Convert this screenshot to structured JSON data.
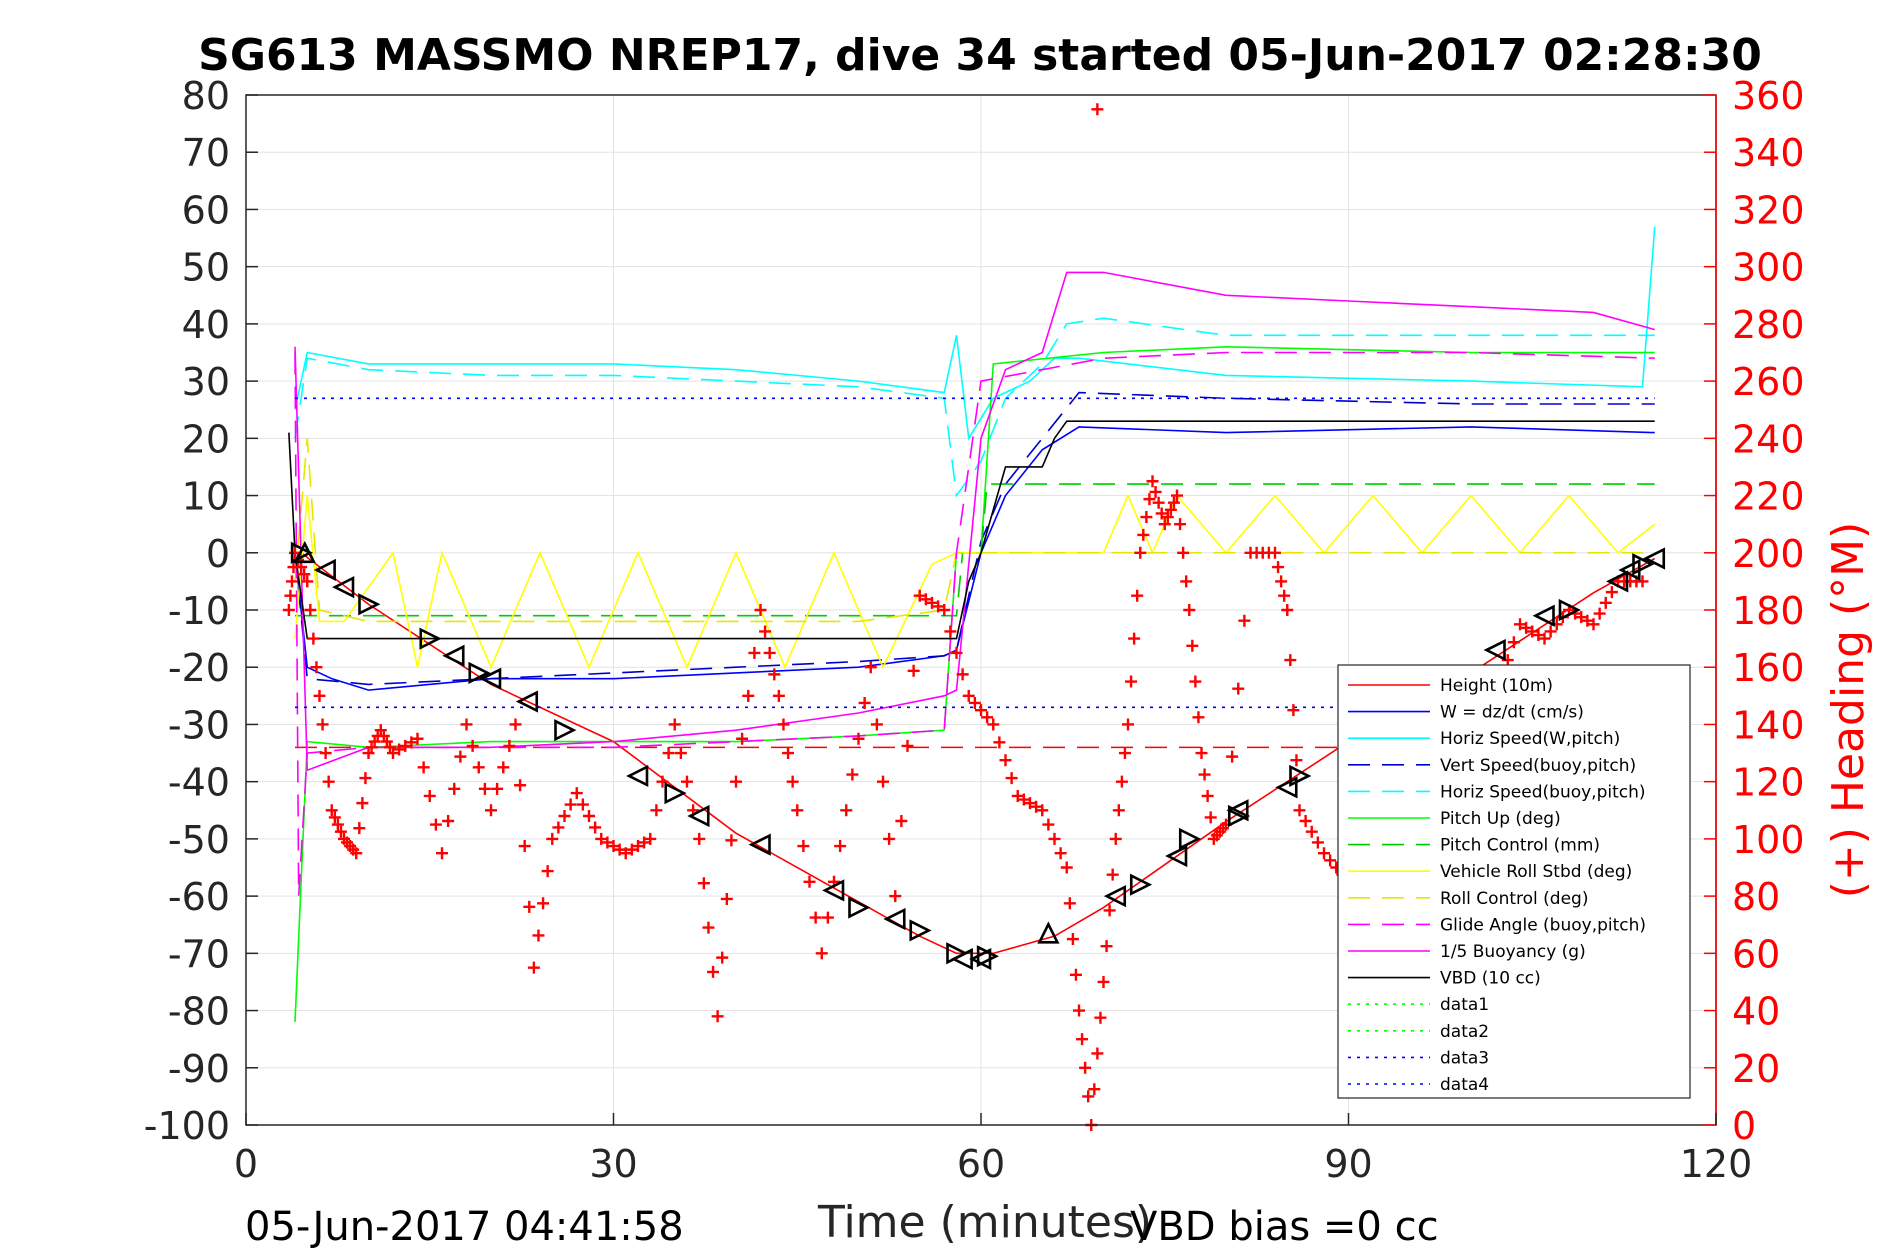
{
  "chart_data": {
    "type": "line",
    "title": "SG613 MASSMO NREP17, dive 34 started 05-Jun-2017 02:28:30",
    "xlabel": "Time (minutes)",
    "ylabel_right": "(+) Heading (°M)",
    "footer_left": "05-Jun-2017 04:41:58",
    "footer_right": "VBD bias =0 cc",
    "xlim": [
      0,
      120
    ],
    "ylim": [
      -100,
      80
    ],
    "ylim_right": [
      0,
      360
    ],
    "x_ticks": [
      "0",
      "30",
      "60",
      "90",
      "120"
    ],
    "y_ticks": [
      "80",
      "70",
      "60",
      "50",
      "40",
      "30",
      "20",
      "10",
      "0",
      "-10",
      "-20",
      "-30",
      "-40",
      "-50",
      "-60",
      "-70",
      "-80",
      "-90",
      "-100"
    ],
    "y_ticks_right": [
      "360",
      "340",
      "320",
      "300",
      "280",
      "260",
      "240",
      "220",
      "200",
      "180",
      "160",
      "140",
      "120",
      "100",
      "80",
      "60",
      "40",
      "20",
      "0"
    ],
    "grid": true,
    "legend_position": "bottom-right",
    "series": [
      {
        "name": "Height (10m)",
        "color": "#ff0000",
        "style": "solid",
        "x": [
          4.5,
          10,
          20,
          30,
          40,
          50,
          55,
          58,
          61,
          66,
          70,
          80,
          90,
          100,
          110,
          115
        ],
        "y": [
          0,
          -9,
          -23,
          -33,
          -49,
          -61,
          -67,
          -70,
          -70,
          -67,
          -62,
          -47,
          -33,
          -21,
          -7,
          -1
        ]
      },
      {
        "name": "W = dz/dt (cm/s)",
        "color": "#0000ff",
        "style": "solid",
        "x": [
          4,
          5,
          7,
          10,
          20,
          30,
          40,
          50,
          57,
          58,
          60,
          62,
          65,
          68,
          80,
          100,
          115
        ],
        "y": [
          0,
          -20,
          -22,
          -24,
          -22,
          -22,
          -21,
          -20,
          -18,
          -17,
          0,
          10,
          18,
          22,
          21,
          22,
          21
        ]
      },
      {
        "name": "Horiz Speed(W,pitch)",
        "color": "#00ffff",
        "style": "solid",
        "x": [
          4,
          5,
          10,
          20,
          30,
          40,
          50,
          57,
          58,
          59,
          61,
          64,
          66,
          68,
          80,
          100,
          114,
          115
        ],
        "y": [
          25,
          35,
          33,
          33,
          33,
          32,
          30,
          28,
          38,
          20,
          27,
          30,
          34,
          34,
          31,
          30,
          29,
          57
        ]
      },
      {
        "name": "Vert Speed(buoy,pitch)",
        "color": "#0000cd",
        "style": "dashed",
        "x": [
          4,
          5,
          10,
          20,
          30,
          40,
          50,
          57,
          58,
          60,
          62,
          65,
          68,
          80,
          100,
          115
        ],
        "y": [
          0,
          -22,
          -23,
          -22,
          -21,
          -20,
          -19,
          -18,
          -17,
          2,
          12,
          20,
          28,
          27,
          26,
          26
        ]
      },
      {
        "name": "Horiz Speed(buoy,pitch)",
        "color": "#00ffff",
        "style": "dashed",
        "x": [
          4,
          5,
          10,
          20,
          30,
          40,
          50,
          57,
          58,
          60,
          62,
          65,
          67,
          70,
          80,
          100,
          115
        ],
        "y": [
          20,
          34,
          32,
          31,
          31,
          30,
          29,
          27,
          10,
          16,
          27,
          33,
          40,
          41,
          38,
          38,
          38
        ]
      },
      {
        "name": "Pitch Up (deg)",
        "color": "#00ff00",
        "style": "solid",
        "x": [
          4,
          5,
          10,
          20,
          30,
          40,
          50,
          57,
          58,
          60,
          61,
          70,
          80,
          100,
          115
        ],
        "y": [
          -82,
          -33,
          -34,
          -33,
          -33,
          -33,
          -32,
          -31,
          0,
          0,
          33,
          35,
          36,
          35,
          35
        ]
      },
      {
        "name": "Pitch Control (mm)",
        "color": "#00cc00",
        "style": "dashed",
        "x": [
          4,
          58,
          58.5,
          60,
          60.5,
          115
        ],
        "y": [
          -11,
          -11,
          0,
          0,
          12,
          12
        ]
      },
      {
        "name": "Vehicle Roll Stbd (deg)",
        "color": "#ffff00",
        "style": "solid",
        "x": [
          4,
          5,
          6,
          8,
          12,
          14,
          16,
          20,
          24,
          28,
          32,
          36,
          40,
          44,
          48,
          52,
          56,
          58,
          60,
          64,
          68,
          70,
          72,
          74,
          76,
          80,
          84,
          88,
          92,
          96,
          100,
          104,
          108,
          112,
          115
        ],
        "y": [
          -15,
          10,
          -12,
          -12,
          0,
          -20,
          0,
          -20,
          0,
          -20,
          0,
          -20,
          0,
          -20,
          0,
          -20,
          -2,
          0,
          0,
          0,
          0,
          0,
          10,
          0,
          10,
          0,
          10,
          0,
          10,
          0,
          10,
          0,
          10,
          0,
          5
        ]
      },
      {
        "name": "Roll Control (deg)",
        "color": "#e6e600",
        "style": "dashed",
        "x": [
          4,
          5,
          6,
          10,
          20,
          30,
          40,
          50,
          57,
          58,
          60,
          70,
          80,
          90,
          100,
          110,
          115
        ],
        "y": [
          -5,
          20,
          -10,
          -12,
          -12,
          -12,
          -12,
          -12,
          -10,
          0,
          0,
          0,
          0,
          0,
          0,
          0,
          0
        ]
      },
      {
        "name": "Glide Angle (buoy,pitch)",
        "color": "#ff00ff",
        "style": "dashed",
        "x": [
          4,
          4.3,
          5,
          10,
          20,
          30,
          40,
          50,
          57,
          58,
          60,
          65,
          70,
          80,
          100,
          115
        ],
        "y": [
          35,
          -60,
          -35,
          -34,
          -34,
          -34,
          -33,
          -32,
          -31,
          0,
          30,
          32,
          34,
          35,
          35,
          34
        ]
      },
      {
        "name": "1/5 Buoyancy (g)",
        "color": "#ff00ff",
        "style": "solid",
        "x": [
          4,
          5,
          10,
          20,
          30,
          40,
          50,
          57,
          58,
          60,
          62,
          65,
          67,
          70,
          80,
          90,
          100,
          110,
          115
        ],
        "y": [
          36,
          -38,
          -34,
          -34,
          -33,
          -31,
          -28,
          -25,
          -24,
          20,
          32,
          35,
          49,
          49,
          45,
          44,
          43,
          42,
          39
        ]
      },
      {
        "name": "VBD (10 cc)",
        "color": "#000000",
        "style": "solid",
        "x": [
          3.5,
          4,
          5,
          58,
          59,
          60,
          62,
          65,
          66,
          67,
          80,
          115
        ],
        "y": [
          21,
          0,
          -15,
          -15,
          -5,
          0,
          15,
          15,
          20,
          23,
          23,
          23
        ]
      },
      {
        "name": "data1",
        "color": "#00ff00",
        "style": "dotted",
        "x": [],
        "y": []
      },
      {
        "name": "data2",
        "color": "#00ff00",
        "style": "dotted",
        "x": [],
        "y": []
      },
      {
        "name": "data3",
        "color": "#0000ff",
        "style": "dotted",
        "x": [
          4,
          115
        ],
        "y": [
          27,
          27
        ]
      },
      {
        "name": "data4",
        "color": "#0000ff",
        "style": "dotted",
        "x": [
          4,
          115
        ],
        "y": [
          -27,
          -27
        ]
      }
    ],
    "reference_line": {
      "color": "#ff0000",
      "style": "dashed",
      "y": -34,
      "x": [
        4,
        115
      ]
    },
    "heading": {
      "axis": "right",
      "color": "#ff0000",
      "marker": "+",
      "x": [
        3.5,
        4,
        5,
        6,
        7,
        8,
        9,
        10,
        11,
        12,
        14,
        16,
        18,
        20,
        22,
        23.5,
        25,
        27,
        29,
        31,
        33,
        35,
        37,
        38.5,
        40,
        42,
        43.5,
        45,
        47,
        49,
        51,
        53,
        55,
        57,
        59,
        61,
        63,
        65,
        67,
        68,
        69,
        70,
        71,
        72,
        73,
        74,
        75,
        76,
        77,
        78,
        79,
        80,
        82,
        84,
        85,
        86,
        88,
        90,
        92,
        94,
        96,
        98,
        100,
        102,
        104,
        106,
        108,
        110,
        112,
        114
      ],
      "y": [
        180,
        200,
        190,
        150,
        110,
        100,
        95,
        130,
        138,
        130,
        135,
        95,
        140,
        110,
        140,
        55,
        100,
        116,
        100,
        95,
        100,
        140,
        100,
        38,
        120,
        180,
        150,
        110,
        60,
        110,
        160,
        80,
        185,
        180,
        150,
        140,
        115,
        110,
        90,
        40,
        0,
        50,
        100,
        140,
        200,
        225,
        210,
        220,
        180,
        130,
        100,
        105,
        200,
        200,
        180,
        110,
        95,
        85,
        100,
        90,
        80,
        105,
        125,
        150,
        175,
        170,
        180,
        175,
        190,
        190
      ]
    },
    "heading_outlier": {
      "x": 69.5,
      "y": 355
    },
    "triangles_right": [
      [
        4.5,
        0
      ],
      [
        10,
        -9
      ],
      [
        15,
        -15
      ],
      [
        19,
        -21
      ],
      [
        26,
        -31
      ],
      [
        35,
        -42
      ],
      [
        50,
        -62
      ],
      [
        55,
        -66
      ],
      [
        58,
        -70
      ],
      [
        60.5,
        -70.5
      ],
      [
        73,
        -58
      ],
      [
        77,
        -50
      ],
      [
        81,
        -46
      ],
      [
        86,
        -39
      ],
      [
        108,
        -10
      ],
      [
        114,
        -2
      ]
    ],
    "triangles_left": [
      [
        6.5,
        -3
      ],
      [
        8,
        -6
      ],
      [
        17,
        -18
      ],
      [
        20,
        -22
      ],
      [
        23,
        -26
      ],
      [
        32,
        -39
      ],
      [
        37,
        -46
      ],
      [
        42,
        -51
      ],
      [
        48,
        -59
      ],
      [
        53,
        -64
      ],
      [
        58.5,
        -71
      ],
      [
        60,
        -71
      ],
      [
        71,
        -60
      ],
      [
        76,
        -53
      ],
      [
        81,
        -45
      ],
      [
        85,
        -41
      ],
      [
        102,
        -17
      ],
      [
        106,
        -11
      ],
      [
        112,
        -5
      ],
      [
        113,
        -3
      ],
      [
        115,
        -1
      ]
    ],
    "triangles_up": [
      [
        65.5,
        -66.5
      ],
      [
        4.8,
        0
      ]
    ]
  }
}
